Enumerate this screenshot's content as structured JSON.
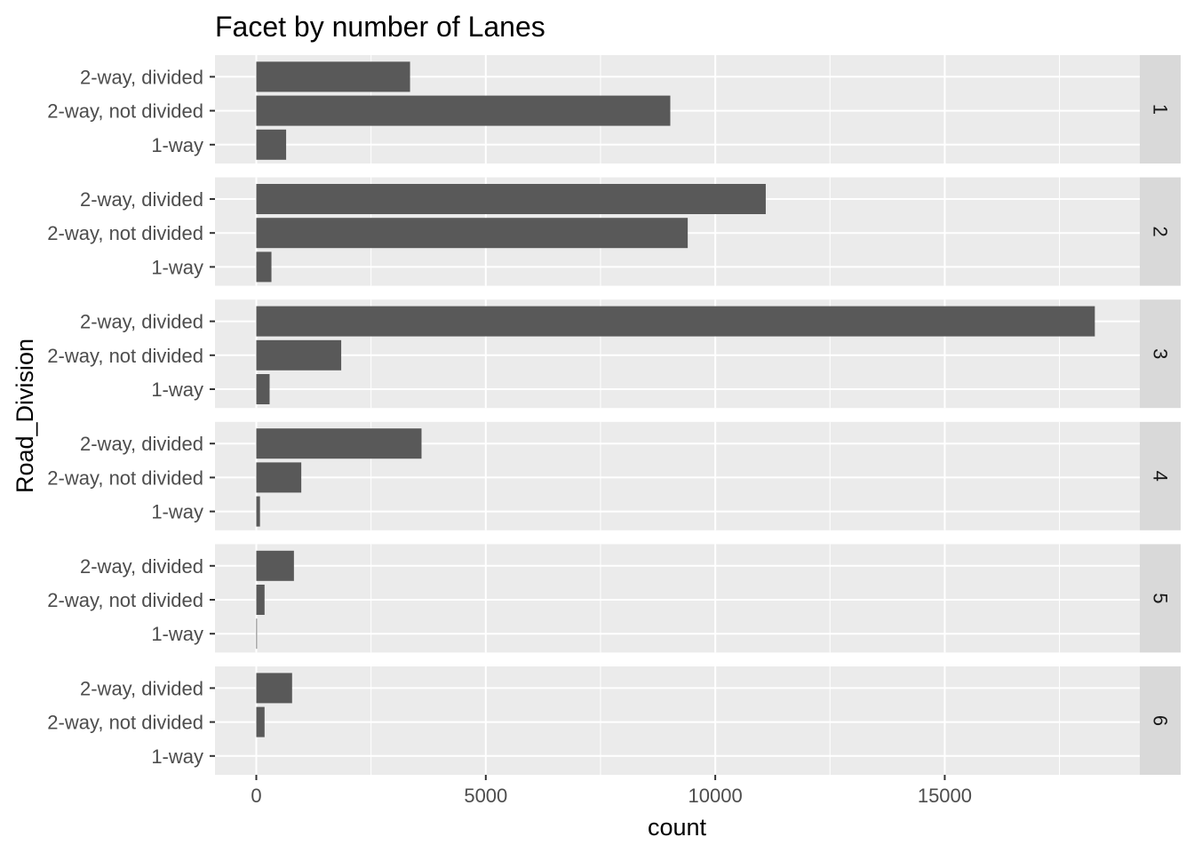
{
  "chart_data": {
    "type": "bar",
    "orientation": "horizontal",
    "title": "Facet by number of Lanes",
    "xlabel": "count",
    "ylabel": "Road_Division",
    "categories": [
      "2-way, divided",
      "2-way, not divided",
      "1-way"
    ],
    "xlim": [
      -900,
      19250
    ],
    "x_ticks": [
      0,
      5000,
      10000,
      15000
    ],
    "x_tick_labels": [
      "0",
      "5000",
      "10000",
      "15000"
    ],
    "grid": true,
    "facet_by": "number of Lanes",
    "facets": [
      {
        "label": "1",
        "values": [
          3350,
          9020,
          650
        ]
      },
      {
        "label": "2",
        "values": [
          11100,
          9400,
          330
        ]
      },
      {
        "label": "3",
        "values": [
          18270,
          1850,
          290
        ]
      },
      {
        "label": "4",
        "values": [
          3600,
          980,
          80
        ]
      },
      {
        "label": "5",
        "values": [
          820,
          180,
          15
        ]
      },
      {
        "label": "6",
        "values": [
          780,
          180,
          0
        ]
      }
    ],
    "colors": {
      "bar": "#595959",
      "panel": "#ebebeb",
      "strip": "#d9d9d9",
      "grid_major": "#ffffff"
    }
  }
}
